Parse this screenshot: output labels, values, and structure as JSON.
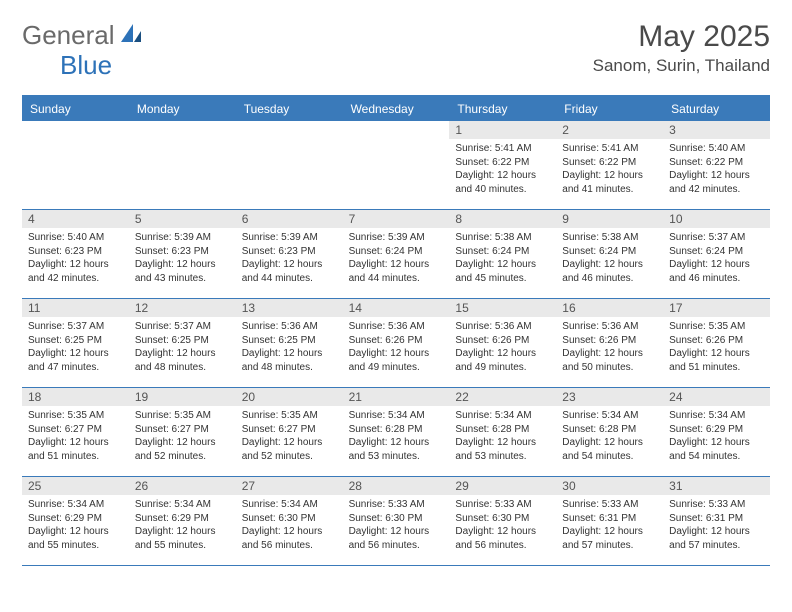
{
  "logo": {
    "text1": "General",
    "text2": "Blue"
  },
  "title": "May 2025",
  "location": "Sanom, Surin, Thailand",
  "colors": {
    "header_bg": "#3a7aba",
    "header_text": "#ffffff",
    "daynum_bg": "#e9e9e9",
    "body_text": "#333333",
    "title_text": "#4a4a4a",
    "logo_gray": "#6a6a6a",
    "logo_blue": "#2d72b8"
  },
  "day_names": [
    "Sunday",
    "Monday",
    "Tuesday",
    "Wednesday",
    "Thursday",
    "Friday",
    "Saturday"
  ],
  "weeks": [
    [
      {
        "n": "",
        "sr": "",
        "ss": "",
        "dl": ""
      },
      {
        "n": "",
        "sr": "",
        "ss": "",
        "dl": ""
      },
      {
        "n": "",
        "sr": "",
        "ss": "",
        "dl": ""
      },
      {
        "n": "",
        "sr": "",
        "ss": "",
        "dl": ""
      },
      {
        "n": "1",
        "sr": "Sunrise: 5:41 AM",
        "ss": "Sunset: 6:22 PM",
        "dl": "Daylight: 12 hours and 40 minutes."
      },
      {
        "n": "2",
        "sr": "Sunrise: 5:41 AM",
        "ss": "Sunset: 6:22 PM",
        "dl": "Daylight: 12 hours and 41 minutes."
      },
      {
        "n": "3",
        "sr": "Sunrise: 5:40 AM",
        "ss": "Sunset: 6:22 PM",
        "dl": "Daylight: 12 hours and 42 minutes."
      }
    ],
    [
      {
        "n": "4",
        "sr": "Sunrise: 5:40 AM",
        "ss": "Sunset: 6:23 PM",
        "dl": "Daylight: 12 hours and 42 minutes."
      },
      {
        "n": "5",
        "sr": "Sunrise: 5:39 AM",
        "ss": "Sunset: 6:23 PM",
        "dl": "Daylight: 12 hours and 43 minutes."
      },
      {
        "n": "6",
        "sr": "Sunrise: 5:39 AM",
        "ss": "Sunset: 6:23 PM",
        "dl": "Daylight: 12 hours and 44 minutes."
      },
      {
        "n": "7",
        "sr": "Sunrise: 5:39 AM",
        "ss": "Sunset: 6:24 PM",
        "dl": "Daylight: 12 hours and 44 minutes."
      },
      {
        "n": "8",
        "sr": "Sunrise: 5:38 AM",
        "ss": "Sunset: 6:24 PM",
        "dl": "Daylight: 12 hours and 45 minutes."
      },
      {
        "n": "9",
        "sr": "Sunrise: 5:38 AM",
        "ss": "Sunset: 6:24 PM",
        "dl": "Daylight: 12 hours and 46 minutes."
      },
      {
        "n": "10",
        "sr": "Sunrise: 5:37 AM",
        "ss": "Sunset: 6:24 PM",
        "dl": "Daylight: 12 hours and 46 minutes."
      }
    ],
    [
      {
        "n": "11",
        "sr": "Sunrise: 5:37 AM",
        "ss": "Sunset: 6:25 PM",
        "dl": "Daylight: 12 hours and 47 minutes."
      },
      {
        "n": "12",
        "sr": "Sunrise: 5:37 AM",
        "ss": "Sunset: 6:25 PM",
        "dl": "Daylight: 12 hours and 48 minutes."
      },
      {
        "n": "13",
        "sr": "Sunrise: 5:36 AM",
        "ss": "Sunset: 6:25 PM",
        "dl": "Daylight: 12 hours and 48 minutes."
      },
      {
        "n": "14",
        "sr": "Sunrise: 5:36 AM",
        "ss": "Sunset: 6:26 PM",
        "dl": "Daylight: 12 hours and 49 minutes."
      },
      {
        "n": "15",
        "sr": "Sunrise: 5:36 AM",
        "ss": "Sunset: 6:26 PM",
        "dl": "Daylight: 12 hours and 49 minutes."
      },
      {
        "n": "16",
        "sr": "Sunrise: 5:36 AM",
        "ss": "Sunset: 6:26 PM",
        "dl": "Daylight: 12 hours and 50 minutes."
      },
      {
        "n": "17",
        "sr": "Sunrise: 5:35 AM",
        "ss": "Sunset: 6:26 PM",
        "dl": "Daylight: 12 hours and 51 minutes."
      }
    ],
    [
      {
        "n": "18",
        "sr": "Sunrise: 5:35 AM",
        "ss": "Sunset: 6:27 PM",
        "dl": "Daylight: 12 hours and 51 minutes."
      },
      {
        "n": "19",
        "sr": "Sunrise: 5:35 AM",
        "ss": "Sunset: 6:27 PM",
        "dl": "Daylight: 12 hours and 52 minutes."
      },
      {
        "n": "20",
        "sr": "Sunrise: 5:35 AM",
        "ss": "Sunset: 6:27 PM",
        "dl": "Daylight: 12 hours and 52 minutes."
      },
      {
        "n": "21",
        "sr": "Sunrise: 5:34 AM",
        "ss": "Sunset: 6:28 PM",
        "dl": "Daylight: 12 hours and 53 minutes."
      },
      {
        "n": "22",
        "sr": "Sunrise: 5:34 AM",
        "ss": "Sunset: 6:28 PM",
        "dl": "Daylight: 12 hours and 53 minutes."
      },
      {
        "n": "23",
        "sr": "Sunrise: 5:34 AM",
        "ss": "Sunset: 6:28 PM",
        "dl": "Daylight: 12 hours and 54 minutes."
      },
      {
        "n": "24",
        "sr": "Sunrise: 5:34 AM",
        "ss": "Sunset: 6:29 PM",
        "dl": "Daylight: 12 hours and 54 minutes."
      }
    ],
    [
      {
        "n": "25",
        "sr": "Sunrise: 5:34 AM",
        "ss": "Sunset: 6:29 PM",
        "dl": "Daylight: 12 hours and 55 minutes."
      },
      {
        "n": "26",
        "sr": "Sunrise: 5:34 AM",
        "ss": "Sunset: 6:29 PM",
        "dl": "Daylight: 12 hours and 55 minutes."
      },
      {
        "n": "27",
        "sr": "Sunrise: 5:34 AM",
        "ss": "Sunset: 6:30 PM",
        "dl": "Daylight: 12 hours and 56 minutes."
      },
      {
        "n": "28",
        "sr": "Sunrise: 5:33 AM",
        "ss": "Sunset: 6:30 PM",
        "dl": "Daylight: 12 hours and 56 minutes."
      },
      {
        "n": "29",
        "sr": "Sunrise: 5:33 AM",
        "ss": "Sunset: 6:30 PM",
        "dl": "Daylight: 12 hours and 56 minutes."
      },
      {
        "n": "30",
        "sr": "Sunrise: 5:33 AM",
        "ss": "Sunset: 6:31 PM",
        "dl": "Daylight: 12 hours and 57 minutes."
      },
      {
        "n": "31",
        "sr": "Sunrise: 5:33 AM",
        "ss": "Sunset: 6:31 PM",
        "dl": "Daylight: 12 hours and 57 minutes."
      }
    ]
  ]
}
